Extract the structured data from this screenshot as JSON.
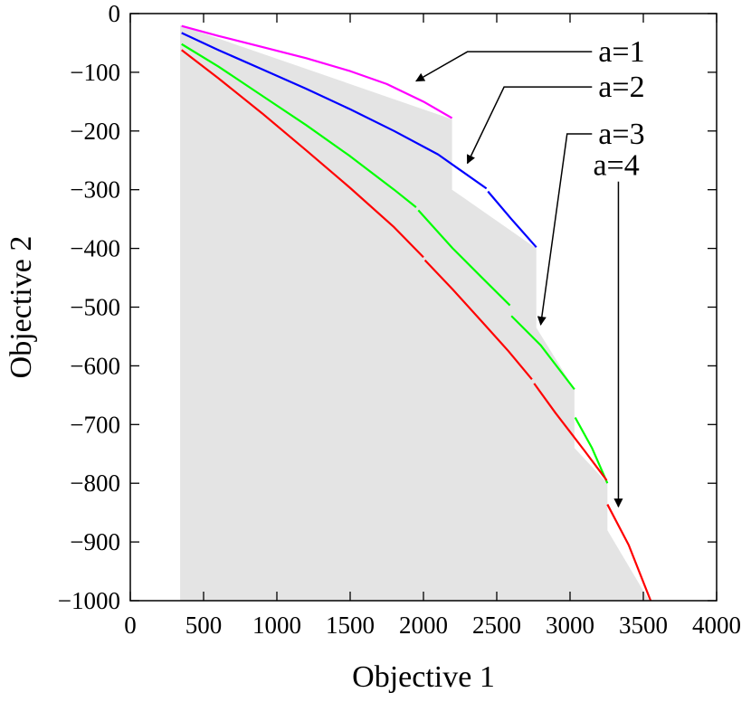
{
  "chart_data": {
    "type": "line",
    "xlabel": "Objective 1",
    "ylabel": "Objective 2",
    "xlim": [
      0,
      4000
    ],
    "ylim": [
      -1000,
      0
    ],
    "xticks": [
      0,
      500,
      1000,
      1500,
      2000,
      2500,
      3000,
      3500,
      4000
    ],
    "yticks": [
      0,
      -100,
      -200,
      -300,
      -400,
      -500,
      -600,
      -700,
      -800,
      -900,
      -1000
    ],
    "xtick_labels": [
      "0",
      "500",
      "1000",
      "1500",
      "2000",
      "2500",
      "3000",
      "3500",
      "4000"
    ],
    "ytick_labels": [
      "0",
      "−100",
      "−200",
      "−300",
      "−400",
      "−500",
      "−600",
      "−700",
      "−800",
      "−900",
      "−1000"
    ],
    "grid": false,
    "shaded_region": {
      "color": "#e4e4e4",
      "x": [
        340,
        2195,
        2195,
        2770,
        2770,
        3030,
        3030,
        3255,
        3255,
        3540,
        340
      ],
      "y": [
        -20,
        -180,
        -300,
        -400,
        -535,
        -640,
        -740,
        -800,
        -880,
        -1000,
        -1000
      ]
    },
    "series": [
      {
        "color": "#ff00ff",
        "segments": [
          {
            "x": [
              350,
              600,
              900,
              1200,
              1500,
              1750,
              2000,
              2195
            ],
            "y": [
              -21,
              -38,
              -57,
              -76,
              -98,
              -120,
              -150,
              -178
            ]
          }
        ]
      },
      {
        "color": "#0000ff",
        "segments": [
          {
            "x": [
              350,
              600,
              900,
              1200,
              1500,
              1800,
              2100,
              2430
            ],
            "y": [
              -33,
              -62,
              -95,
              -128,
              -163,
              -200,
              -240,
              -298
            ]
          },
          {
            "x": [
              2440,
              2600,
              2770
            ],
            "y": [
              -303,
              -350,
              -398
            ]
          }
        ]
      },
      {
        "color": "#00ff00",
        "segments": [
          {
            "x": [
              350,
              600,
              900,
              1200,
              1500,
              1800,
              1950
            ],
            "y": [
              -52,
              -90,
              -140,
              -190,
              -243,
              -300,
              -330
            ]
          },
          {
            "x": [
              1965,
              2200,
              2400,
              2590
            ],
            "y": [
              -335,
              -400,
              -450,
              -497
            ]
          },
          {
            "x": [
              2600,
              2800,
              3030
            ],
            "y": [
              -515,
              -565,
              -640
            ]
          },
          {
            "x": [
              3035,
              3150,
              3255
            ],
            "y": [
              -688,
              -740,
              -800
            ]
          }
        ]
      },
      {
        "color": "#ff0000",
        "segments": [
          {
            "x": [
              350,
              600,
              900,
              1200,
              1500,
              1800,
              2000
            ],
            "y": [
              -62,
              -110,
              -170,
              -233,
              -297,
              -364,
              -415
            ]
          },
          {
            "x": [
              2010,
              2200,
              2400,
              2580,
              2740
            ],
            "y": [
              -420,
              -470,
              -525,
              -575,
              -623
            ]
          },
          {
            "x": [
              2755,
              2900,
              3100,
              3250
            ],
            "y": [
              -630,
              -680,
              -745,
              -795
            ]
          },
          {
            "x": [
              3255,
              3400,
              3550
            ],
            "y": [
              -836,
              -905,
              -1000
            ]
          }
        ]
      }
    ],
    "annotations": [
      {
        "label": "a=1",
        "line_from": [
          3150,
          -65
        ],
        "line_to": [
          2300,
          -65
        ],
        "arrow_to": [
          1950,
          -115
        ]
      },
      {
        "label": "a=2",
        "line_from": [
          3150,
          -125
        ],
        "line_to": [
          2550,
          -125
        ],
        "arrow_to": [
          2300,
          -255
        ]
      },
      {
        "label": "a=3",
        "line_from": [
          3150,
          -205
        ],
        "line_to": [
          2980,
          -205
        ],
        "arrow_to": [
          2800,
          -530
        ]
      },
      {
        "label": "a=4",
        "line_from": [
          3330,
          -280
        ],
        "line_to": [
          3330,
          -280
        ],
        "arrow_to": [
          3330,
          -840
        ]
      }
    ]
  }
}
